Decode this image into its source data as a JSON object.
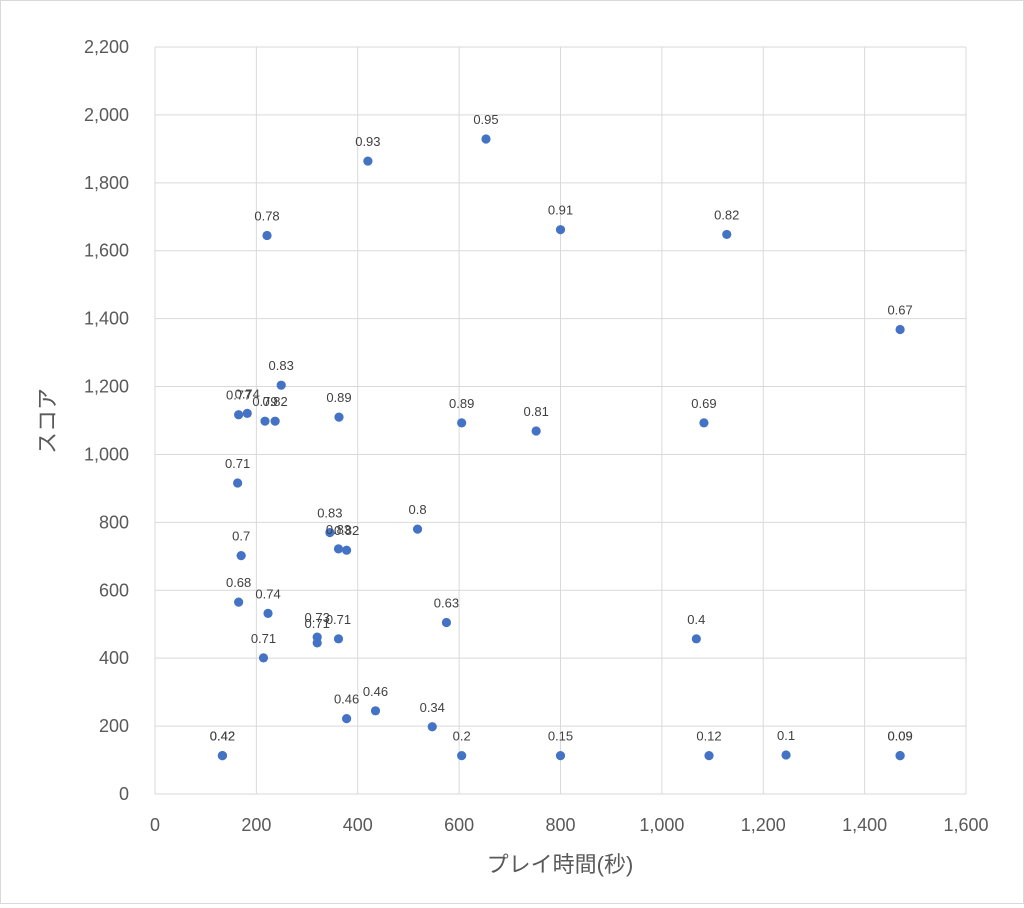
{
  "chart_data": {
    "type": "scatter",
    "title": "",
    "xlabel": "プレイ時間(秒)",
    "ylabel": "スコア",
    "xlim": [
      0,
      1600
    ],
    "ylim": [
      0,
      2200
    ],
    "x_ticks": [
      0,
      200,
      400,
      600,
      800,
      1000,
      1200,
      1400,
      1600
    ],
    "x_tick_labels": [
      "0",
      "200",
      "400",
      "600",
      "800",
      "1,000",
      "1,200",
      "1,400",
      "1,600"
    ],
    "y_ticks": [
      0,
      200,
      400,
      600,
      800,
      1000,
      1200,
      1400,
      1600,
      1800,
      2000,
      2200
    ],
    "y_tick_labels": [
      "0",
      "200",
      "400",
      "600",
      "800",
      "1,000",
      "1,200",
      "1,400",
      "1,600",
      "1,800",
      "2,000",
      "2,200"
    ],
    "grid": true,
    "legend": "none",
    "marker_color": "#4472c4",
    "points": [
      {
        "x": 133,
        "y": 113,
        "label": "0.42"
      },
      {
        "x": 133,
        "y": 113,
        "label": "0.42"
      },
      {
        "x": 163,
        "y": 916,
        "label": "0.71"
      },
      {
        "x": 165,
        "y": 565,
        "label": "0.68"
      },
      {
        "x": 165,
        "y": 1117,
        "label": "0.77"
      },
      {
        "x": 170,
        "y": 702,
        "label": "0.7"
      },
      {
        "x": 182,
        "y": 1121,
        "label": "0.74"
      },
      {
        "x": 214,
        "y": 401,
        "label": "0.71"
      },
      {
        "x": 217,
        "y": 1098,
        "label": "0.79"
      },
      {
        "x": 221,
        "y": 1645,
        "label": "0.78"
      },
      {
        "x": 223,
        "y": 532,
        "label": "0.74"
      },
      {
        "x": 237,
        "y": 1098,
        "label": "0.82"
      },
      {
        "x": 249,
        "y": 1204,
        "label": "0.83"
      },
      {
        "x": 320,
        "y": 462,
        "label": "0.73"
      },
      {
        "x": 320,
        "y": 445,
        "label": "0.71"
      },
      {
        "x": 345,
        "y": 770,
        "label": "0.83"
      },
      {
        "x": 362,
        "y": 722,
        "label": "0.83"
      },
      {
        "x": 362,
        "y": 457,
        "label": "0.71"
      },
      {
        "x": 363,
        "y": 1110,
        "label": "0.89"
      },
      {
        "x": 378,
        "y": 718,
        "label": "0.82"
      },
      {
        "x": 378,
        "y": 222,
        "label": "0.46"
      },
      {
        "x": 420,
        "y": 1864,
        "label": "0.93"
      },
      {
        "x": 435,
        "y": 245,
        "label": "0.46"
      },
      {
        "x": 518,
        "y": 780,
        "label": "0.8"
      },
      {
        "x": 547,
        "y": 198,
        "label": "0.34"
      },
      {
        "x": 575,
        "y": 505,
        "label": "0.63"
      },
      {
        "x": 605,
        "y": 1093,
        "label": "0.89"
      },
      {
        "x": 605,
        "y": 113,
        "label": "0.2"
      },
      {
        "x": 653,
        "y": 1929,
        "label": "0.95"
      },
      {
        "x": 752,
        "y": 1069,
        "label": "0.81"
      },
      {
        "x": 800,
        "y": 1662,
        "label": "0.91"
      },
      {
        "x": 800,
        "y": 113,
        "label": "0.15"
      },
      {
        "x": 1068,
        "y": 457,
        "label": "0.4"
      },
      {
        "x": 1083,
        "y": 1093,
        "label": "0.69"
      },
      {
        "x": 1093,
        "y": 113,
        "label": "0.12"
      },
      {
        "x": 1128,
        "y": 1648,
        "label": "0.82"
      },
      {
        "x": 1245,
        "y": 115,
        "label": "0.1"
      },
      {
        "x": 1470,
        "y": 1368,
        "label": "0.67"
      },
      {
        "x": 1470,
        "y": 113,
        "label": "0.09"
      },
      {
        "x": 1470,
        "y": 113,
        "label": "0.09"
      }
    ]
  }
}
